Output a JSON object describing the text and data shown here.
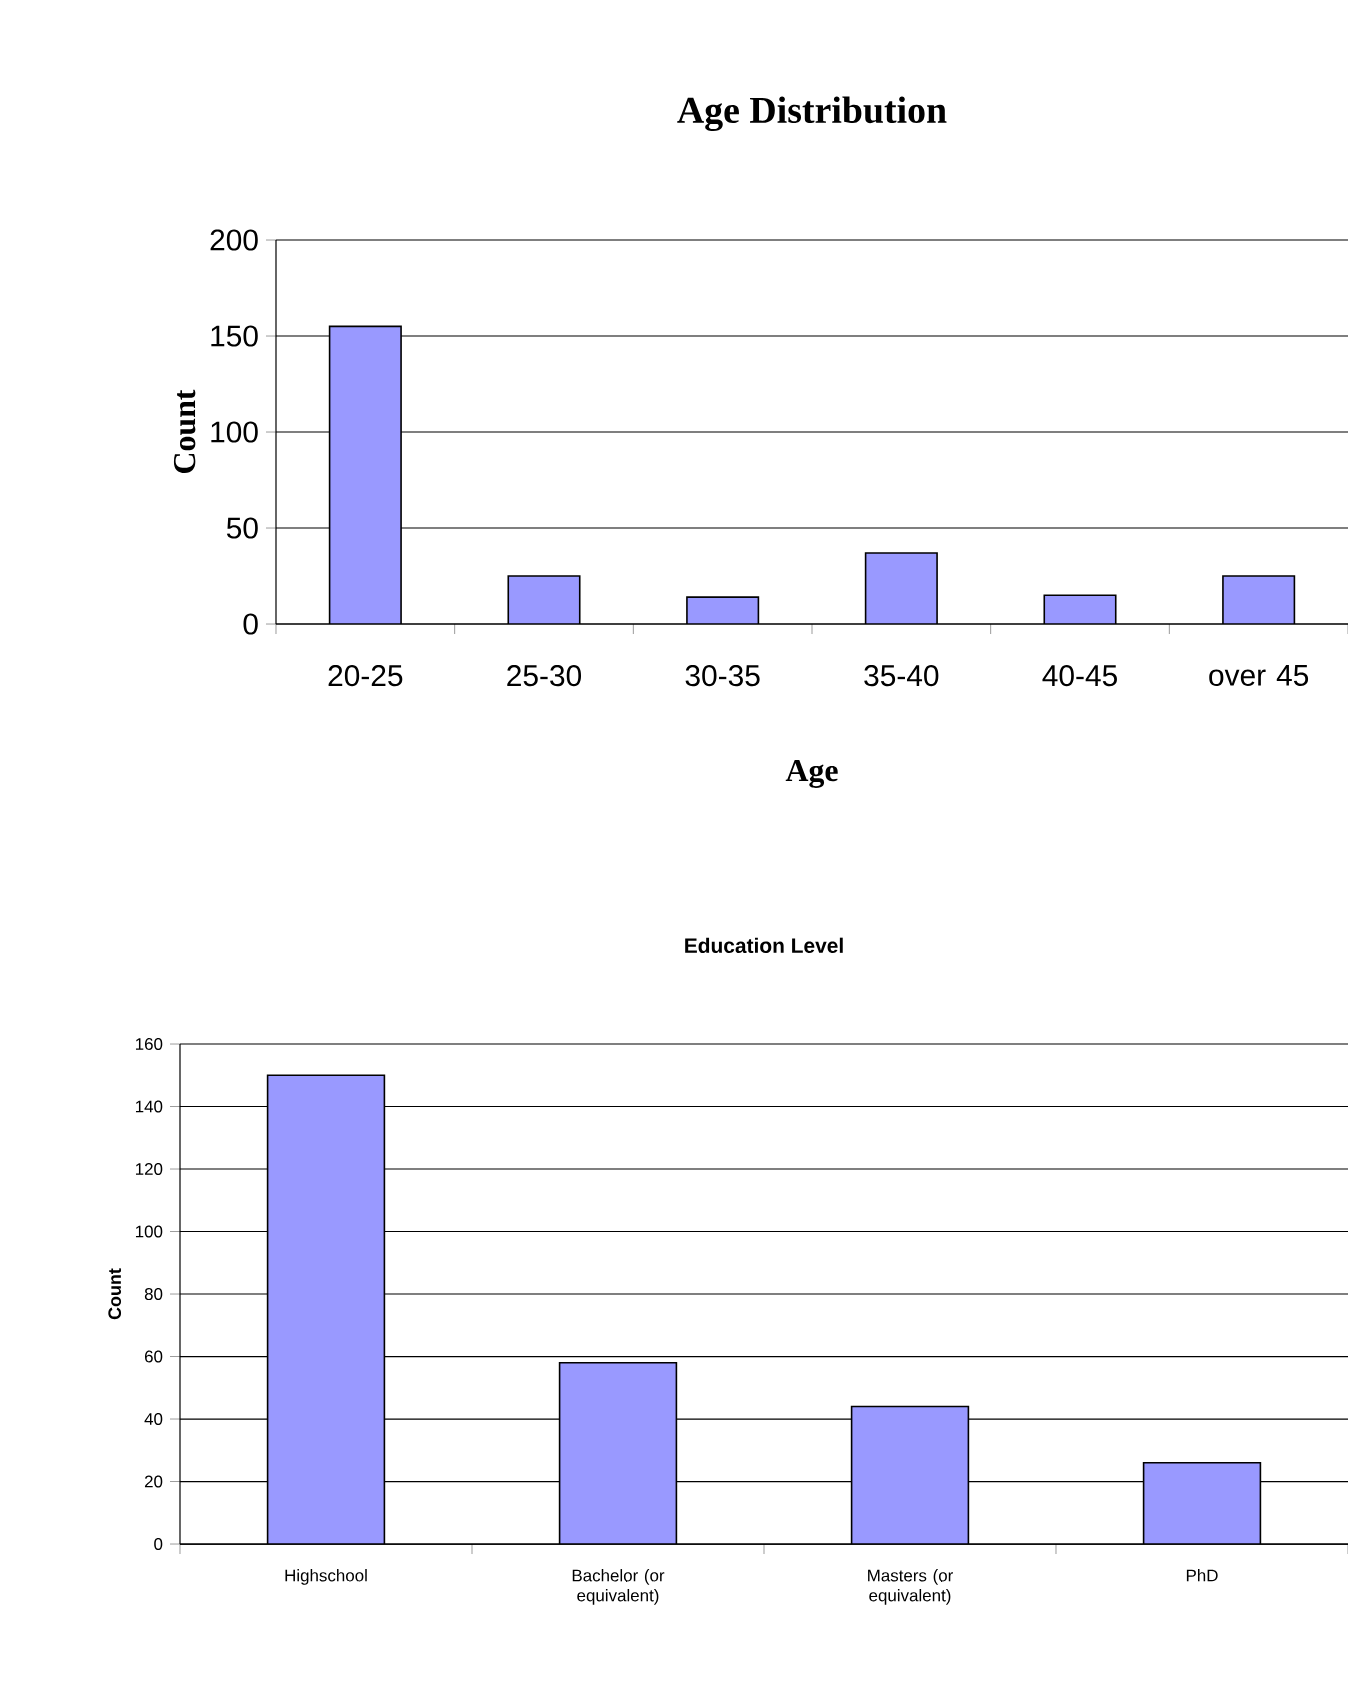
{
  "chart_data": [
    {
      "type": "bar",
      "title": "Age Distribution",
      "xlabel": "Age",
      "ylabel": "Count",
      "categories": [
        "20-25",
        "25-30",
        "30-35",
        "35-40",
        "40-45",
        "over 45"
      ],
      "values": [
        155,
        25,
        14,
        37,
        15,
        25
      ],
      "color": "#9999ff",
      "ylim": [
        0,
        200
      ],
      "yticks": [
        0,
        50,
        100,
        150,
        200
      ],
      "grid": "y"
    },
    {
      "type": "bar",
      "title": "Education Level",
      "ylabel": "Count",
      "categories": [
        "Highschool",
        "Bachelor (or equivalent)",
        "Masters (or equivalent)",
        "PhD"
      ],
      "values": [
        150,
        58,
        44,
        26
      ],
      "color": "#9999ff",
      "ylim": [
        0,
        160
      ],
      "yticks": [
        0,
        20,
        40,
        60,
        80,
        100,
        120,
        140,
        160
      ],
      "grid": "y"
    }
  ]
}
